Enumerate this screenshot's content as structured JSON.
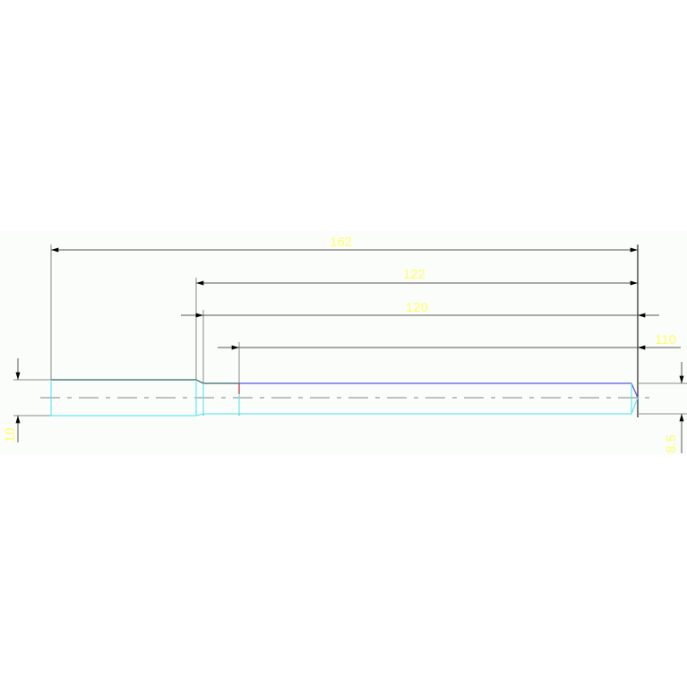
{
  "drawing": {
    "dimensions": [
      {
        "id": "overall-length",
        "label": "162"
      },
      {
        "id": "length-122",
        "label": "122"
      },
      {
        "id": "length-120",
        "label": "120"
      },
      {
        "id": "length-110",
        "label": "110"
      },
      {
        "id": "left-diameter",
        "label": "10"
      },
      {
        "id": "right-diameter",
        "label": "8.5"
      }
    ],
    "colors": {
      "dimension_text": "#ffff66",
      "outline_cyan": "#66e8ee",
      "outline_blue": "#5555dd",
      "outline_teal": "#336666",
      "centerline": "#9a9a9a",
      "background": "#fbfdfb"
    }
  }
}
